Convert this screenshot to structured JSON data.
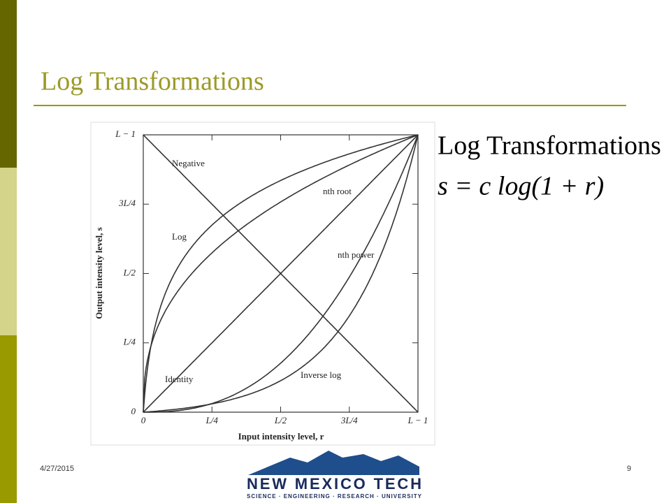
{
  "slide": {
    "title": "Log Transformations",
    "date": "4/27/2015",
    "page_number": "9"
  },
  "figure": {
    "y_axis_label": "Output intensity level, s",
    "x_axis_label": "Input intensity level, r",
    "y_tick_labels": [
      "0",
      "L/4",
      "L/2",
      "3L/4",
      "L − 1"
    ],
    "x_tick_labels": [
      "0",
      "L/4",
      "L/2",
      "3L/4",
      "L − 1"
    ],
    "curve_labels": {
      "negative": "Negative",
      "log": "Log",
      "nth_root": "nth root",
      "identity": "Identity",
      "nth_power": "nth power",
      "inverse_log": "Inverse log"
    }
  },
  "equation": {
    "heading": "Log Transformations",
    "formula": "s = c log(1 + r)"
  },
  "logo": {
    "name": "NEW MEXICO TECH",
    "tagline": "SCIENCE · ENGINEERING · RESEARCH · UNIVERSITY"
  }
}
